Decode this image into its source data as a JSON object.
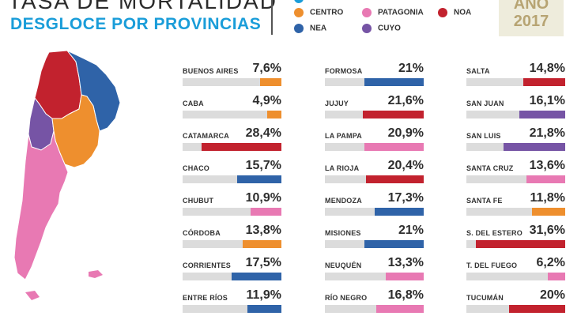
{
  "header": {
    "title": "TASA DE MORTALIDAD",
    "subtitle": "DESGLOCE POR PROVINCIAS",
    "year_line1": "AÑO",
    "year_line2": "2017"
  },
  "colors": {
    "CENTRO": "#ee8f2e",
    "PATAGONIA": "#e879b3",
    "NOA": "#c2222e",
    "NEA": "#2f63a8",
    "CUYO": "#7654a5",
    "track": "#dcdcdc",
    "title_blue": "#1a9dd9"
  },
  "legend": [
    {
      "label": "CENTRO",
      "region": "CENTRO"
    },
    {
      "label": "PATAGONIA",
      "region": "PATAGONIA"
    },
    {
      "label": "NOA",
      "region": "NOA"
    },
    {
      "label": "NEA",
      "region": "NEA"
    },
    {
      "label": "CUYO",
      "region": "CUYO"
    }
  ],
  "chart_data": {
    "type": "bar",
    "title": "TASA DE MORTALIDAD",
    "subtitle": "DESGLOCE POR PROVINCIAS",
    "ylim": [
      0,
      35
    ],
    "categories": [
      "BUENOS AIRES",
      "CABA",
      "CATAMARCA",
      "CHACO",
      "CHUBUT",
      "CÓRDOBA",
      "CORRIENTES",
      "ENTRE RÍOS",
      "FORMOSA",
      "JUJUY",
      "LA PAMPA",
      "LA RIOJA",
      "MENDOZA",
      "MISIONES",
      "NEUQUÉN",
      "RÍO NEGRO",
      "SALTA",
      "SAN JUAN",
      "SAN LUIS",
      "SANTA CRUZ",
      "SANTA FE",
      "S. DEL ESTERO",
      "T. DEL FUEGO",
      "TUCUMÁN"
    ],
    "values": [
      7.6,
      4.9,
      28.4,
      15.7,
      10.9,
      13.8,
      17.5,
      11.9,
      21,
      21.6,
      20.9,
      20.4,
      17.3,
      21,
      13.3,
      16.8,
      14.8,
      16.1,
      21.8,
      13.6,
      11.8,
      31.6,
      6.2,
      20
    ],
    "items": [
      {
        "name": "BUENOS AIRES",
        "label": "7,6%",
        "value": 7.6,
        "region": "CENTRO"
      },
      {
        "name": "CABA",
        "label": "4,9%",
        "value": 4.9,
        "region": "CENTRO"
      },
      {
        "name": "CATAMARCA",
        "label": "28,4%",
        "value": 28.4,
        "region": "NOA"
      },
      {
        "name": "CHACO",
        "label": "15,7%",
        "value": 15.7,
        "region": "NEA"
      },
      {
        "name": "CHUBUT",
        "label": "10,9%",
        "value": 10.9,
        "region": "PATAGONIA"
      },
      {
        "name": "CÓRDOBA",
        "label": "13,8%",
        "value": 13.8,
        "region": "CENTRO"
      },
      {
        "name": "CORRIENTES",
        "label": "17,5%",
        "value": 17.5,
        "region": "NEA"
      },
      {
        "name": "ENTRE RÍOS",
        "label": "11,9%",
        "value": 11.9,
        "region": "NEA"
      },
      {
        "name": "FORMOSA",
        "label": "21%",
        "value": 21,
        "region": "NEA"
      },
      {
        "name": "JUJUY",
        "label": "21,6%",
        "value": 21.6,
        "region": "NOA"
      },
      {
        "name": "LA PAMPA",
        "label": "20,9%",
        "value": 20.9,
        "region": "PATAGONIA"
      },
      {
        "name": "LA RIOJA",
        "label": "20,4%",
        "value": 20.4,
        "region": "NOA"
      },
      {
        "name": "MENDOZA",
        "label": "17,3%",
        "value": 17.3,
        "region": "NEA"
      },
      {
        "name": "MISIONES",
        "label": "21%",
        "value": 21,
        "region": "NEA"
      },
      {
        "name": "NEUQUÉN",
        "label": "13,3%",
        "value": 13.3,
        "region": "PATAGONIA"
      },
      {
        "name": "RÍO NEGRO",
        "label": "16,8%",
        "value": 16.8,
        "region": "PATAGONIA"
      },
      {
        "name": "SALTA",
        "label": "14,8%",
        "value": 14.8,
        "region": "NOA"
      },
      {
        "name": "SAN JUAN",
        "label": "16,1%",
        "value": 16.1,
        "region": "CUYO"
      },
      {
        "name": "SAN LUIS",
        "label": "21,8%",
        "value": 21.8,
        "region": "CUYO"
      },
      {
        "name": "SANTA CRUZ",
        "label": "13,6%",
        "value": 13.6,
        "region": "PATAGONIA"
      },
      {
        "name": "SANTA FE",
        "label": "11,8%",
        "value": 11.8,
        "region": "CENTRO"
      },
      {
        "name": "S. DEL ESTERO",
        "label": "31,6%",
        "value": 31.6,
        "region": "NOA"
      },
      {
        "name": "T. DEL FUEGO",
        "label": "6,2%",
        "value": 6.2,
        "region": "PATAGONIA"
      },
      {
        "name": "TUCUMÁN",
        "label": "20%",
        "value": 20,
        "region": "NOA"
      }
    ]
  }
}
